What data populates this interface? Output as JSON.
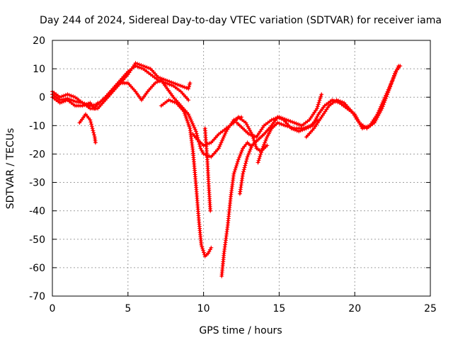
{
  "chart_data": {
    "type": "scatter",
    "title": "Day 244 of 2024, Sidereal Day-to-day VTEC variation (SDTVAR) for receiver iama",
    "xlabel": "GPS time / hours",
    "ylabel": "SDTVAR / TECUs",
    "xlim": [
      0,
      25
    ],
    "ylim": [
      -70,
      20
    ],
    "xticks": [
      "0",
      "5",
      "10",
      "15",
      "20",
      "25"
    ],
    "yticks": [
      "20",
      "10",
      "0",
      "-10",
      "-20",
      "-30",
      "-40",
      "-50",
      "-60",
      "-70"
    ],
    "grid": true,
    "marker": "+",
    "color": "#ff0000",
    "series": [
      {
        "points": [
          [
            0,
            1
          ],
          [
            0.5,
            -1
          ],
          [
            1,
            -0.5
          ],
          [
            1.5,
            -1.5
          ],
          [
            2,
            -2
          ],
          [
            2.5,
            -3
          ],
          [
            3,
            -2.5
          ],
          [
            3.5,
            0
          ],
          [
            4,
            3
          ],
          [
            4.5,
            6
          ],
          [
            5,
            9
          ],
          [
            5.5,
            11
          ],
          [
            6,
            10
          ],
          [
            6.5,
            8
          ],
          [
            7,
            6
          ],
          [
            7.5,
            5
          ],
          [
            8,
            4
          ],
          [
            8.5,
            2
          ],
          [
            9,
            -1
          ]
        ]
      },
      {
        "points": [
          [
            0,
            2
          ],
          [
            0.5,
            0
          ],
          [
            1,
            1
          ],
          [
            1.5,
            0
          ],
          [
            2,
            -2
          ],
          [
            2.5,
            -4
          ],
          [
            3,
            -4
          ],
          [
            3.5,
            -1
          ],
          [
            4,
            2
          ],
          [
            4.5,
            5
          ],
          [
            5,
            8
          ],
          [
            5.5,
            12
          ],
          [
            6,
            11
          ],
          [
            6.5,
            10
          ],
          [
            7,
            7
          ],
          [
            7.5,
            6
          ],
          [
            8,
            5
          ],
          [
            8.5,
            4
          ],
          [
            9,
            3
          ],
          [
            9.1,
            5
          ]
        ]
      },
      {
        "points": [
          [
            0,
            0
          ],
          [
            0.5,
            -2
          ],
          [
            1,
            -1
          ],
          [
            1.5,
            -3
          ],
          [
            2,
            -3
          ],
          [
            2.5,
            -2
          ],
          [
            2.8,
            -4
          ],
          [
            3,
            -2
          ]
        ]
      },
      {
        "points": [
          [
            1.8,
            -9
          ],
          [
            2.2,
            -6
          ],
          [
            2.5,
            -8
          ],
          [
            2.8,
            -14
          ],
          [
            2.85,
            -16
          ]
        ]
      },
      {
        "points": [
          [
            3.8,
            1
          ],
          [
            4.5,
            5
          ],
          [
            5,
            5
          ],
          [
            5.5,
            2
          ],
          [
            5.9,
            -1
          ],
          [
            6.3,
            2
          ],
          [
            6.8,
            5
          ],
          [
            7.2,
            6
          ],
          [
            7.6,
            3
          ],
          [
            8,
            0
          ],
          [
            8.5,
            -3
          ],
          [
            9,
            -6
          ],
          [
            9.5,
            -12
          ],
          [
            9.8,
            -18
          ],
          [
            10,
            -20
          ],
          [
            10.5,
            -21
          ],
          [
            11,
            -18
          ],
          [
            11.5,
            -12
          ],
          [
            12,
            -8
          ],
          [
            12.5,
            -7
          ]
        ]
      },
      {
        "points": [
          [
            7.2,
            -3
          ],
          [
            7.7,
            -1
          ],
          [
            8.2,
            -2
          ],
          [
            8.7,
            -5
          ],
          [
            9.1,
            -11
          ],
          [
            9.3,
            -19
          ],
          [
            9.5,
            -31
          ],
          [
            9.7,
            -44
          ],
          [
            9.85,
            -52
          ],
          [
            10.1,
            -56
          ],
          [
            10.3,
            -55
          ],
          [
            10.5,
            -53
          ]
        ]
      },
      {
        "points": [
          [
            10.1,
            -11
          ],
          [
            10.15,
            -15
          ],
          [
            10.25,
            -22
          ],
          [
            10.35,
            -32
          ],
          [
            10.45,
            -40
          ]
        ]
      },
      {
        "points": [
          [
            9.3,
            -13
          ],
          [
            9.6,
            -15
          ],
          [
            10,
            -17
          ],
          [
            10.5,
            -16
          ],
          [
            11,
            -13
          ],
          [
            11.5,
            -11
          ],
          [
            12,
            -9
          ],
          [
            12.3,
            -7
          ],
          [
            12.8,
            -9
          ],
          [
            13.2,
            -13
          ],
          [
            13.5,
            -18
          ],
          [
            13.8,
            -19
          ],
          [
            14.2,
            -17
          ]
        ]
      },
      {
        "points": [
          [
            11.2,
            -63
          ],
          [
            11.35,
            -55
          ],
          [
            11.6,
            -45
          ],
          [
            11.8,
            -35
          ],
          [
            12,
            -27
          ],
          [
            12.3,
            -22
          ],
          [
            12.6,
            -18
          ],
          [
            12.9,
            -16
          ],
          [
            13.1,
            -17
          ]
        ]
      },
      {
        "points": [
          [
            12.4,
            -34
          ],
          [
            12.6,
            -27
          ],
          [
            12.9,
            -21
          ],
          [
            13.2,
            -17
          ],
          [
            13.6,
            -15
          ],
          [
            14,
            -13
          ],
          [
            14.5,
            -10
          ],
          [
            14.9,
            -7
          ],
          [
            15.3,
            -8
          ],
          [
            15.8,
            -11
          ],
          [
            16.3,
            -12
          ],
          [
            16.8,
            -11
          ],
          [
            17.2,
            -10
          ],
          [
            17.6,
            -6
          ],
          [
            18,
            -3
          ],
          [
            18.5,
            -1
          ],
          [
            19,
            -2
          ],
          [
            19.5,
            -4
          ],
          [
            20,
            -6
          ],
          [
            20.5,
            -11
          ],
          [
            21,
            -10
          ],
          [
            21.5,
            -6
          ],
          [
            22,
            0
          ],
          [
            22.5,
            6
          ],
          [
            22.9,
            11
          ]
        ]
      },
      {
        "points": [
          [
            12.2,
            -9
          ],
          [
            12.6,
            -11
          ],
          [
            13,
            -13
          ],
          [
            13.5,
            -14
          ],
          [
            14,
            -10
          ],
          [
            14.5,
            -8
          ],
          [
            15,
            -7
          ],
          [
            15.5,
            -8
          ],
          [
            16,
            -9
          ],
          [
            16.5,
            -10
          ],
          [
            17,
            -8
          ],
          [
            17.5,
            -4
          ],
          [
            17.8,
            1
          ]
        ]
      },
      {
        "points": [
          [
            13.6,
            -23
          ],
          [
            13.9,
            -18
          ],
          [
            14.2,
            -14
          ],
          [
            14.5,
            -11
          ],
          [
            14.9,
            -9
          ],
          [
            15.4,
            -10
          ],
          [
            16,
            -11
          ],
          [
            16.6,
            -11
          ],
          [
            17.1,
            -10
          ],
          [
            17.5,
            -8
          ]
        ]
      },
      {
        "points": [
          [
            16.8,
            -14
          ],
          [
            17.3,
            -11
          ],
          [
            17.8,
            -7
          ],
          [
            18.3,
            -3
          ],
          [
            18.8,
            -1
          ],
          [
            19.3,
            -2
          ],
          [
            19.8,
            -5
          ],
          [
            20.3,
            -9
          ],
          [
            20.8,
            -11
          ],
          [
            21.3,
            -9
          ],
          [
            21.8,
            -4
          ],
          [
            22.3,
            3
          ],
          [
            22.7,
            9
          ],
          [
            23,
            11
          ]
        ]
      }
    ]
  }
}
